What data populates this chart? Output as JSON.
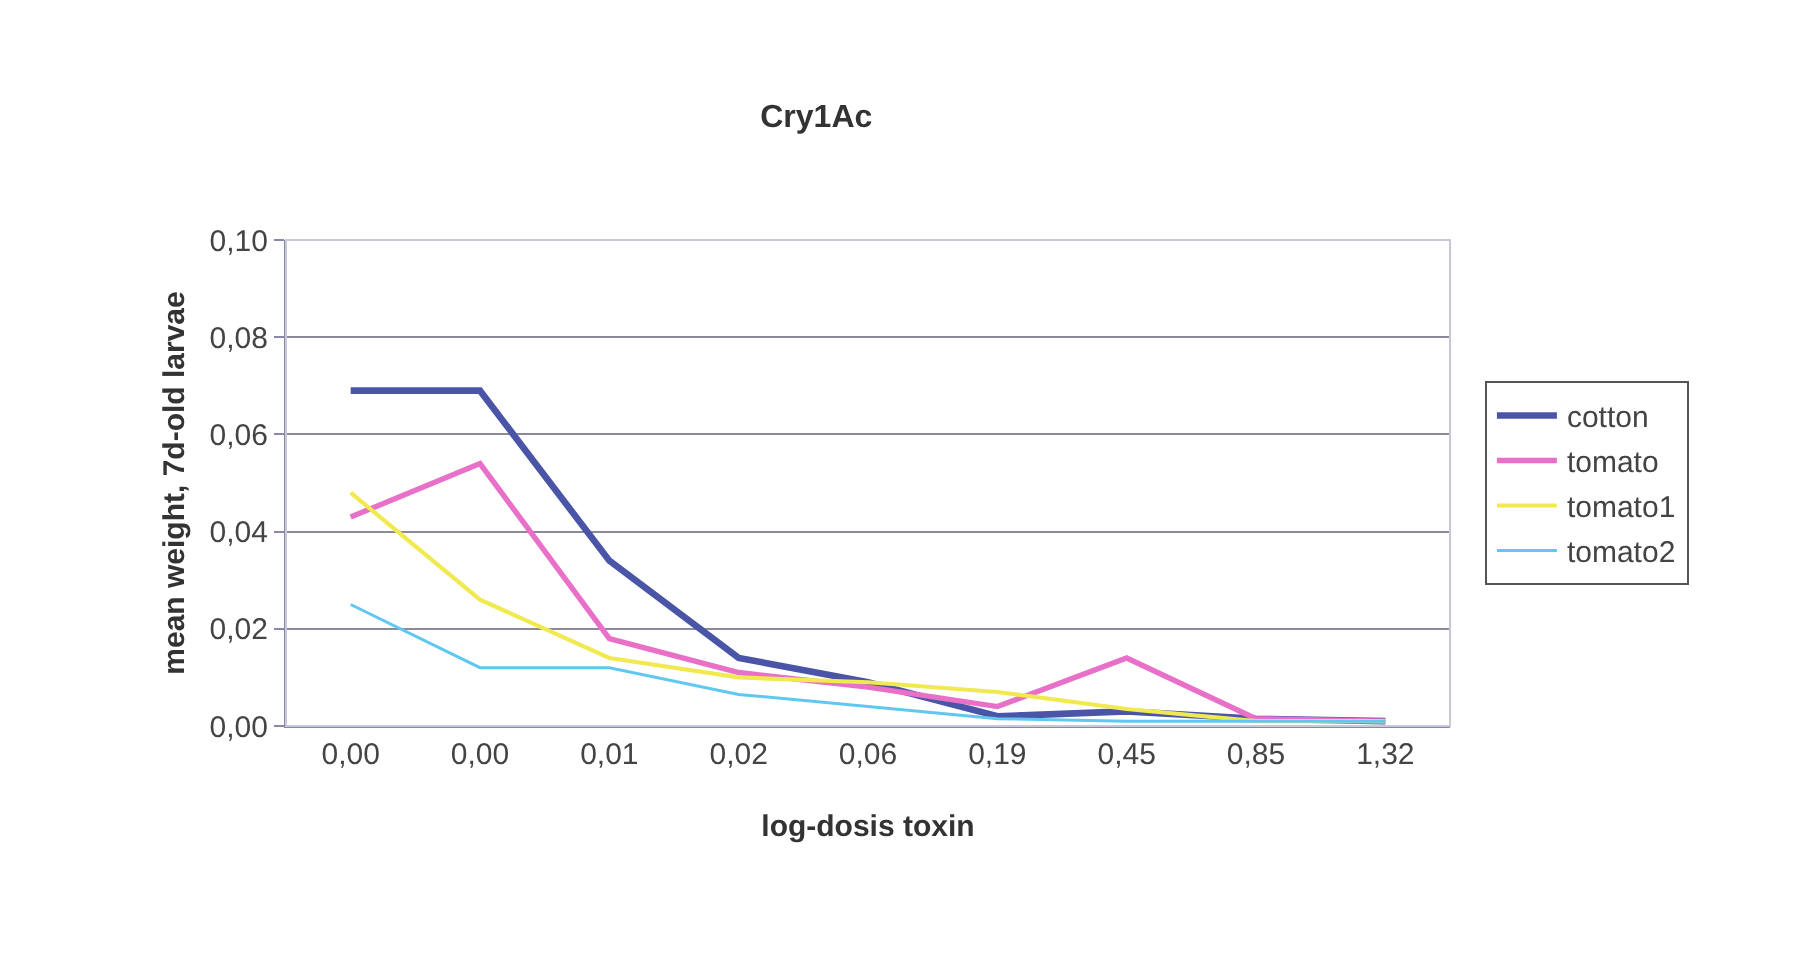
{
  "chart_data": {
    "type": "line",
    "title": "Cry1Ac",
    "xlabel": "log-dosis toxin",
    "ylabel": "mean weight, 7d-old larvae",
    "categories": [
      "0,00",
      "0,00",
      "0,01",
      "0,02",
      "0,06",
      "0,19",
      "0,45",
      "0,85",
      "1,32"
    ],
    "series": [
      {
        "name": "cotton",
        "color": "#4a55a8",
        "values": [
          0.069,
          0.069,
          0.034,
          0.014,
          0.009,
          0.002,
          0.003,
          0.0015,
          0.001
        ]
      },
      {
        "name": "tomato",
        "color": "#e870c8",
        "values": [
          0.043,
          0.054,
          0.018,
          0.011,
          0.008,
          0.004,
          0.014,
          0.0015,
          0.001
        ]
      },
      {
        "name": "tomato1",
        "color": "#f0ea50",
        "values": [
          0.048,
          0.026,
          0.014,
          0.01,
          0.009,
          0.007,
          0.0035,
          0.001,
          0.001
        ]
      },
      {
        "name": "tomato2",
        "color": "#60c8f0",
        "values": [
          0.025,
          0.012,
          0.012,
          0.0065,
          0.004,
          0.0015,
          0.001,
          0.001,
          0.001
        ]
      }
    ],
    "ylim": [
      0,
      0.1
    ],
    "yticks": [
      {
        "value": 0,
        "label": "0,00"
      },
      {
        "value": 0.02,
        "label": "0,02"
      },
      {
        "value": 0.04,
        "label": "0,04"
      },
      {
        "value": 0.06,
        "label": "0,06"
      },
      {
        "value": 0.08,
        "label": "0,08"
      },
      {
        "value": 0.1,
        "label": "0,10"
      }
    ],
    "grid": "y",
    "legend": "right",
    "marker": "none",
    "line_style": "solid"
  }
}
